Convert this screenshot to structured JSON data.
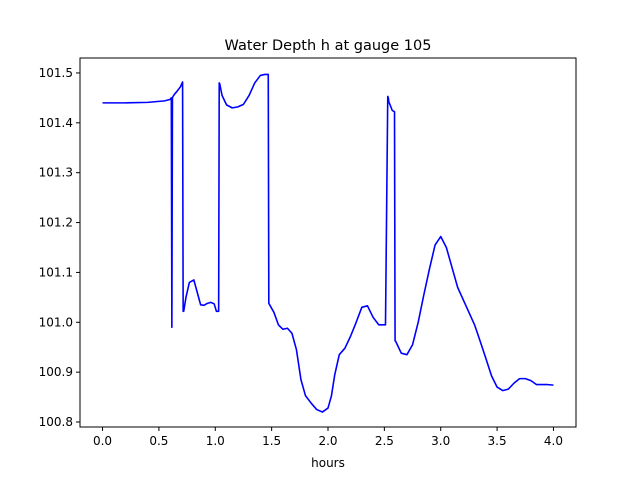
{
  "chart_data": {
    "type": "line",
    "title": "Water Depth h at gauge 105",
    "xlabel": "hours",
    "ylabel": "",
    "xlim": [
      -0.2,
      4.2
    ],
    "ylim": [
      100.79,
      101.53
    ],
    "xticks": [
      0.0,
      0.5,
      1.0,
      1.5,
      2.0,
      2.5,
      3.0,
      3.5,
      4.0
    ],
    "xtick_labels": [
      "0.0",
      "0.5",
      "1.0",
      "1.5",
      "2.0",
      "2.5",
      "3.0",
      "3.5",
      "4.0"
    ],
    "yticks": [
      100.8,
      100.9,
      101.0,
      101.1,
      101.2,
      101.3,
      101.4,
      101.5
    ],
    "ytick_labels": [
      "100.8",
      "100.9",
      "101.0",
      "101.1",
      "101.2",
      "101.3",
      "101.4",
      "101.5"
    ],
    "grid": false,
    "series": [
      {
        "color": "#0000ff",
        "x": [
          0.0,
          0.2,
          0.4,
          0.55,
          0.6,
          0.61,
          0.615,
          0.62,
          0.625,
          0.64,
          0.66,
          0.69,
          0.71,
          0.715,
          0.72,
          0.74,
          0.77,
          0.81,
          0.84,
          0.87,
          0.9,
          0.93,
          0.96,
          0.99,
          1.01,
          1.03,
          1.035,
          1.04,
          1.06,
          1.1,
          1.15,
          1.2,
          1.25,
          1.3,
          1.35,
          1.4,
          1.44,
          1.47,
          1.475,
          1.48,
          1.52,
          1.56,
          1.6,
          1.64,
          1.68,
          1.72,
          1.76,
          1.8,
          1.85,
          1.9,
          1.95,
          2.0,
          2.03,
          2.06,
          2.1,
          2.15,
          2.2,
          2.25,
          2.3,
          2.35,
          2.4,
          2.45,
          2.48,
          2.51,
          2.53,
          2.535,
          2.54,
          2.57,
          2.59,
          2.595,
          2.6,
          2.65,
          2.7,
          2.75,
          2.8,
          2.85,
          2.9,
          2.95,
          3.0,
          3.05,
          3.1,
          3.15,
          3.2,
          3.25,
          3.3,
          3.35,
          3.4,
          3.45,
          3.5,
          3.55,
          3.6,
          3.65,
          3.7,
          3.75,
          3.8,
          3.85,
          3.9,
          3.95,
          4.0
        ],
        "y": [
          101.44,
          101.44,
          101.441,
          101.444,
          101.447,
          101.45,
          100.99,
          101.45,
          101.453,
          101.458,
          101.463,
          101.472,
          101.482,
          101.022,
          101.022,
          101.05,
          101.08,
          101.085,
          101.06,
          101.035,
          101.034,
          101.038,
          101.04,
          101.037,
          101.022,
          101.022,
          101.48,
          101.478,
          101.455,
          101.436,
          101.43,
          101.432,
          101.437,
          101.455,
          101.48,
          101.495,
          101.497,
          101.497,
          101.038,
          101.036,
          101.02,
          100.995,
          100.986,
          100.988,
          100.978,
          100.945,
          100.885,
          100.853,
          100.838,
          100.825,
          100.82,
          100.828,
          100.852,
          100.895,
          100.935,
          100.948,
          100.972,
          101.0,
          101.03,
          101.033,
          101.01,
          100.995,
          100.995,
          100.995,
          101.453,
          101.45,
          101.442,
          101.425,
          101.422,
          100.963,
          100.962,
          100.938,
          100.935,
          100.955,
          101.0,
          101.055,
          101.107,
          101.155,
          101.172,
          101.15,
          101.11,
          101.07,
          101.045,
          101.02,
          100.995,
          100.962,
          100.928,
          100.893,
          100.87,
          100.863,
          100.866,
          100.878,
          100.887,
          100.887,
          100.883,
          100.875,
          100.875,
          100.875,
          100.874
        ]
      }
    ]
  }
}
